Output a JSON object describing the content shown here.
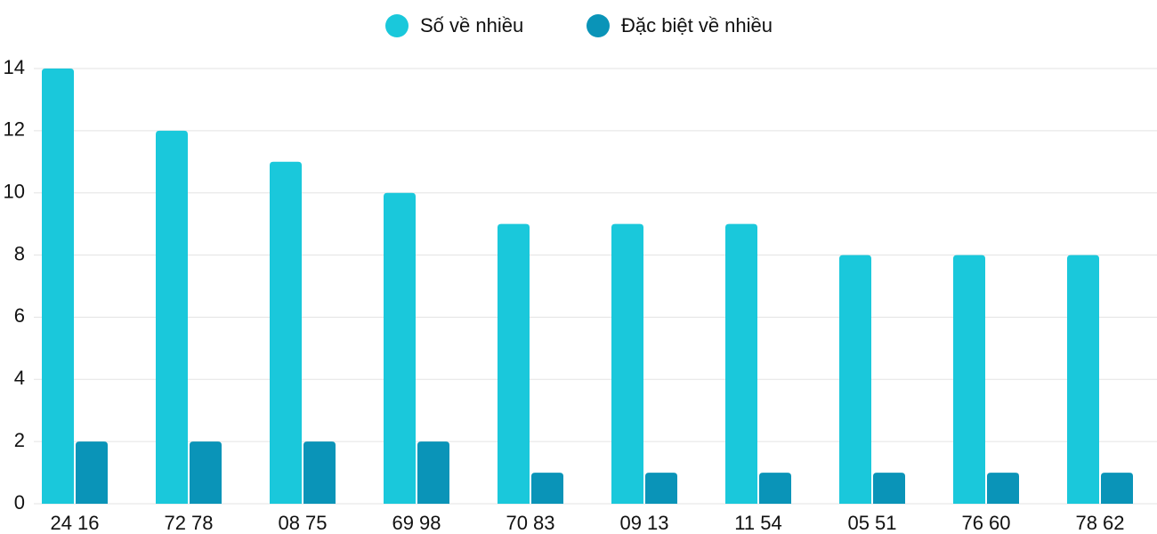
{
  "chart_data": {
    "type": "bar",
    "categories": [
      "24 16",
      "72 78",
      "08 75",
      "69 98",
      "70 83",
      "09 13",
      "11 54",
      "05 51",
      "76 60",
      "78 62"
    ],
    "series": [
      {
        "name": "Số về nhiều",
        "color": "#1ac8db",
        "values": [
          14,
          12,
          11,
          10,
          9,
          9,
          9,
          8,
          8,
          8
        ]
      },
      {
        "name": "Đặc biệt về nhiều",
        "color": "#0a94b8",
        "values": [
          2,
          2,
          2,
          2,
          1,
          1,
          1,
          1,
          1,
          1
        ]
      }
    ],
    "ylim": [
      0,
      14
    ],
    "yticks": [
      0,
      2,
      4,
      6,
      8,
      10,
      12,
      14
    ],
    "grid": true,
    "legend": "top"
  }
}
